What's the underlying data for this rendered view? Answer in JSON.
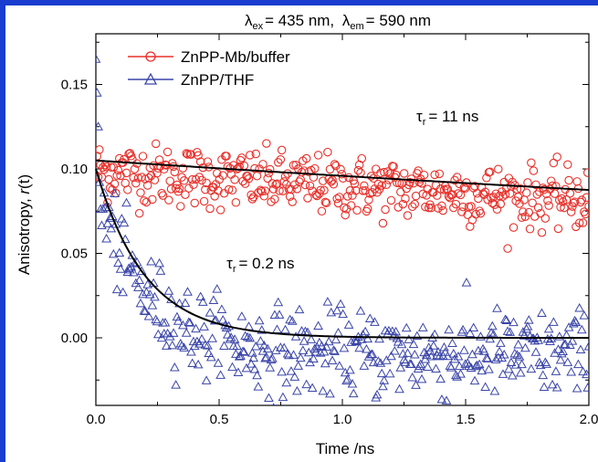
{
  "chart_data": {
    "type": "scatter",
    "title": "λex = 435 nm, λem = 590 nm",
    "title_parts": {
      "lambda": "λ",
      "ex_sub": "ex",
      "ex_value": "= 435 nm,",
      "em_sub": "em",
      "em_value": "= 590 nm"
    },
    "xlabel": "Time /ns",
    "ylabel": "Anisotropy, r(t)",
    "ylabel_parts": {
      "prefix": "Anisotropy,",
      "var": "r",
      "suffix": "(t)"
    },
    "xlim": [
      0.0,
      2.0
    ],
    "ylim": [
      -0.04,
      0.18
    ],
    "xticks": [
      0.0,
      0.5,
      1.0,
      1.5,
      2.0
    ],
    "xtick_labels": [
      "0.0",
      "0.5",
      "1.0",
      "1.5",
      "2.0"
    ],
    "yticks": [
      0.0,
      0.05,
      0.1,
      0.15
    ],
    "ytick_labels": [
      "0.00",
      "0.05",
      "0.10",
      "0.15"
    ],
    "legend_position": "top-left",
    "grid": false,
    "series": [
      {
        "name": "ZnPP-Mb/buffer",
        "marker": "circle",
        "color": "#e8302a",
        "fit_model": {
          "r0": 0.105,
          "tau_ns": 11,
          "rinf": 0.0
        },
        "annotation": "τr = 11 ns",
        "x_range": [
          0.0,
          2.0
        ],
        "mean_level": 0.097,
        "noise": 0.009
      },
      {
        "name": "ZnPP/THF",
        "marker": "triangle",
        "color": "#3a45a8",
        "fit_model": {
          "r0": 0.1,
          "tau_ns": 0.2,
          "rinf": 0.0
        },
        "annotation": "τr = 0.2 ns",
        "x_range": [
          0.0,
          2.0
        ],
        "noise": 0.013
      }
    ],
    "annotations": [
      {
        "text_main": "τ",
        "text_sub": "r",
        "text_value": "= 11 ns",
        "x": 1.3,
        "y": 0.128
      },
      {
        "text_main": "τ",
        "text_sub": "r",
        "text_value": "= 0.2 ns",
        "x": 0.53,
        "y": 0.041
      }
    ]
  }
}
